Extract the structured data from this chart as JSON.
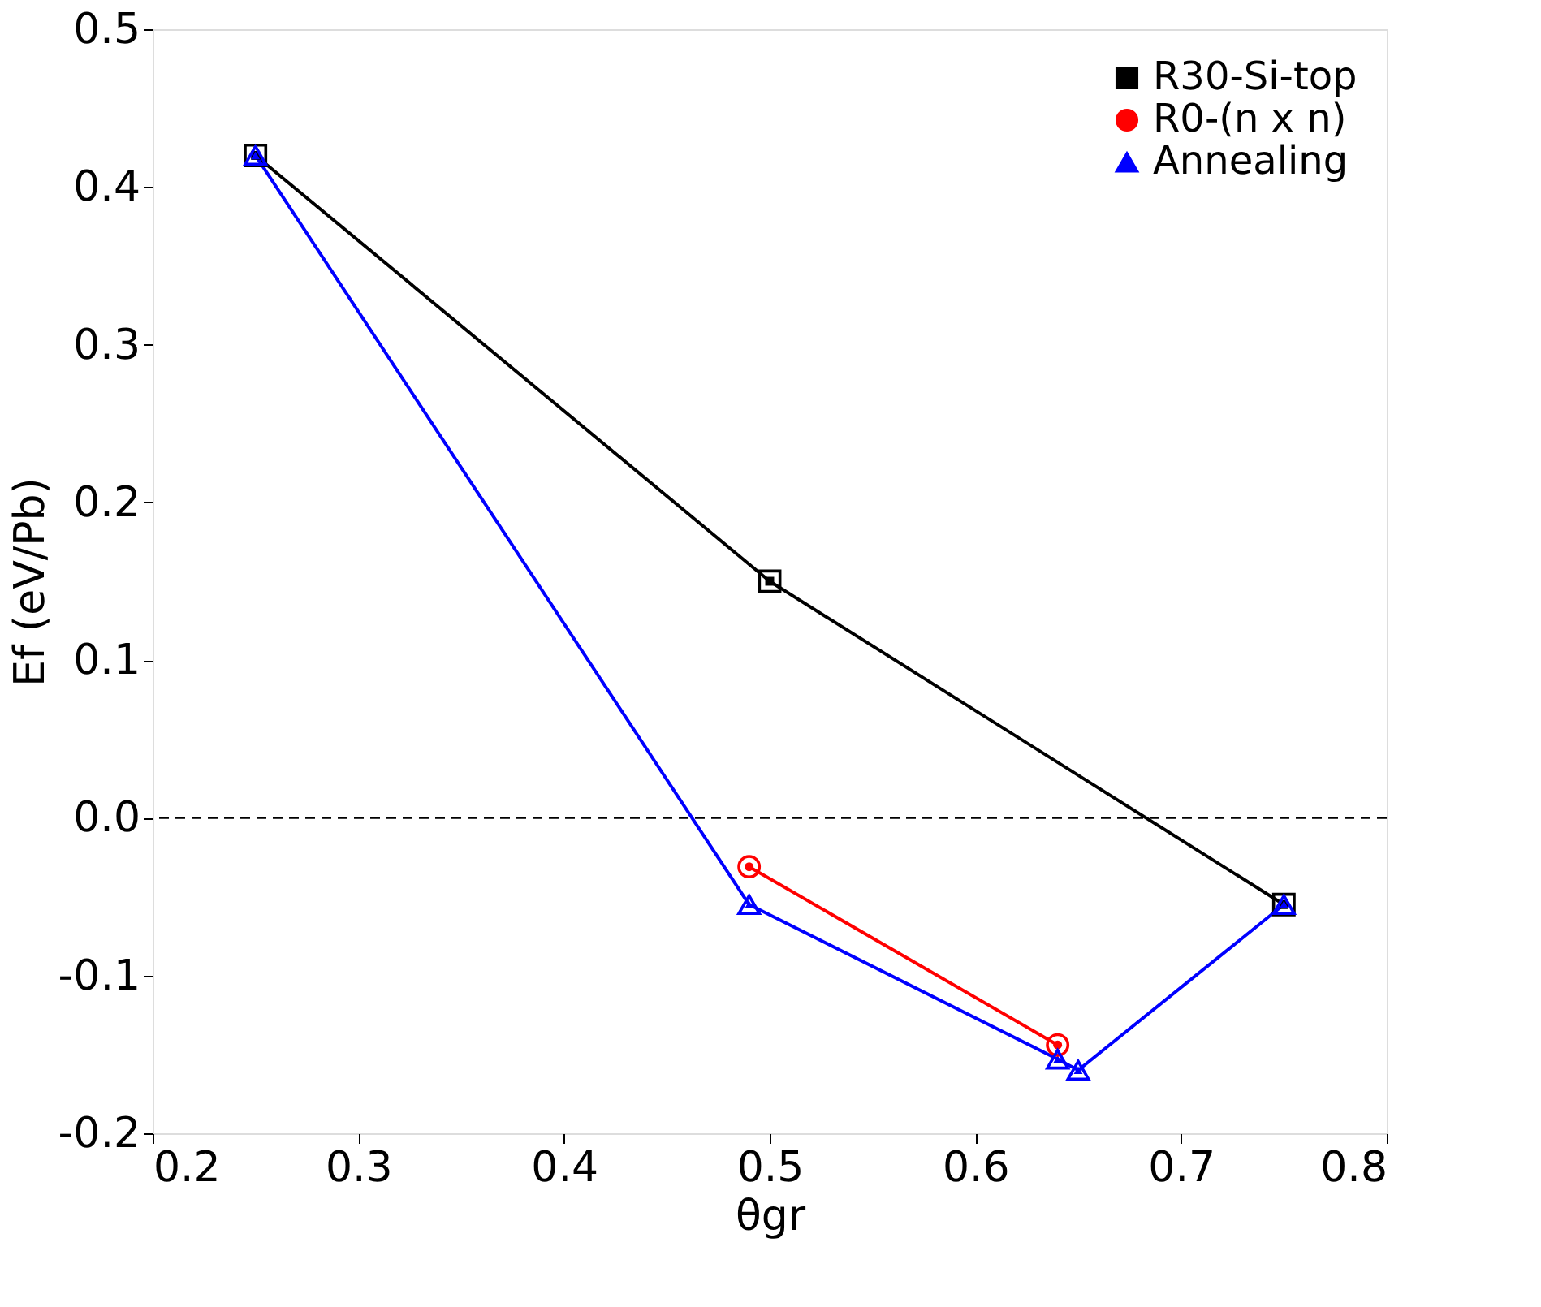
{
  "chart_data": {
    "type": "line",
    "xlabel": "θgr",
    "ylabel": "Ef (eV/Pb)",
    "xlim": [
      0.2,
      0.8
    ],
    "xticks": [
      0.2,
      0.3,
      0.4,
      0.5,
      0.6,
      0.7,
      0.8
    ],
    "ylim": [
      -0.2,
      0.5
    ],
    "yticks": [
      {
        "value": -0.2,
        "label": "-0.2"
      },
      {
        "value": -0.1,
        "label": "-0.1"
      },
      {
        "value": 0,
        "label": "0.0"
      },
      0.1,
      0.2,
      0.3,
      0.4,
      0.5
    ],
    "grid": false,
    "legend": "top right",
    "line_style": "solid",
    "ref_lines": [
      {
        "axis": "y",
        "value": 0,
        "label": null,
        "color": "#000000",
        "line_style": "dashed"
      }
    ],
    "series": [
      {
        "name": "R30-Si-top",
        "color": "#000000",
        "marker": "square",
        "x": [
          0.25,
          0.5,
          0.75
        ],
        "values": [
          0.42,
          0.15,
          -0.055
        ]
      },
      {
        "name": "R0-(n x n)",
        "color": "#ff0000",
        "marker": "circle",
        "x": [
          0.49,
          0.64
        ],
        "values": [
          -0.031,
          -0.144
        ]
      },
      {
        "name": "Annealing",
        "color": "#0000ff",
        "marker": "triangle",
        "x": [
          0.25,
          0.49,
          0.64,
          0.65,
          0.75
        ],
        "values": [
          0.42,
          -0.055,
          -0.153,
          -0.16,
          -0.055
        ]
      }
    ]
  }
}
